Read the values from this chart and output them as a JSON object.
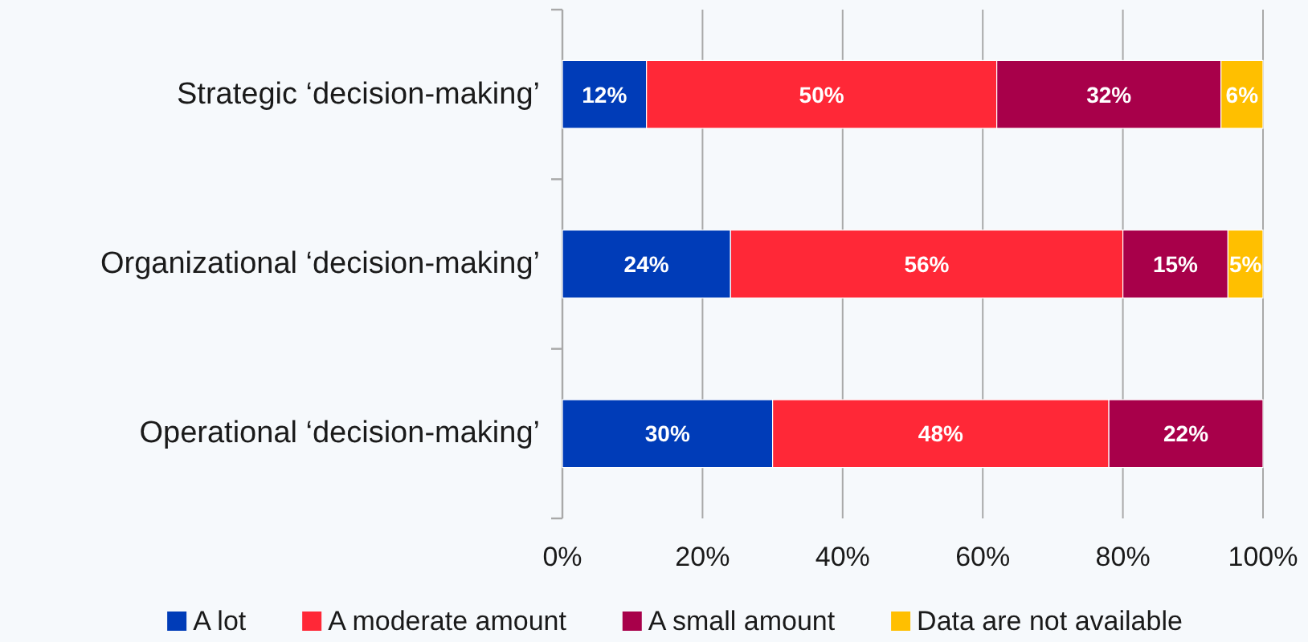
{
  "chart_data": {
    "type": "bar",
    "orientation": "horizontal",
    "stacked": true,
    "categories": [
      "Strategic ‘decision-making’",
      "Organizational ‘decision-making’",
      "Operational ‘decision-making’"
    ],
    "series": [
      {
        "name": "A lot",
        "color": "#003cb8",
        "values": [
          12,
          24,
          30
        ],
        "value_labels": [
          "12%",
          "24%",
          "30%"
        ]
      },
      {
        "name": "A moderate amount",
        "color": "#ff2837",
        "values": [
          50,
          56,
          48
        ],
        "value_labels": [
          "50%",
          "56%",
          "48%"
        ]
      },
      {
        "name": "A small amount",
        "color": "#a8004a",
        "values": [
          32,
          15,
          22
        ],
        "value_labels": [
          "32%",
          "15%",
          "22%"
        ]
      },
      {
        "name": "Data are not available",
        "color": "#ffbf00",
        "values": [
          6,
          5,
          null
        ],
        "value_labels": [
          "6%",
          "5%",
          null
        ]
      }
    ],
    "xlim": [
      0,
      100
    ],
    "xticks": [
      {
        "value": 0,
        "label": "0%"
      },
      {
        "value": 20,
        "label": "20%"
      },
      {
        "value": 40,
        "label": "40%"
      },
      {
        "value": 60,
        "label": "60%"
      },
      {
        "value": 80,
        "label": "80%"
      },
      {
        "value": 100,
        "label": "100%"
      }
    ],
    "grid": "x",
    "legend": "bottom"
  }
}
